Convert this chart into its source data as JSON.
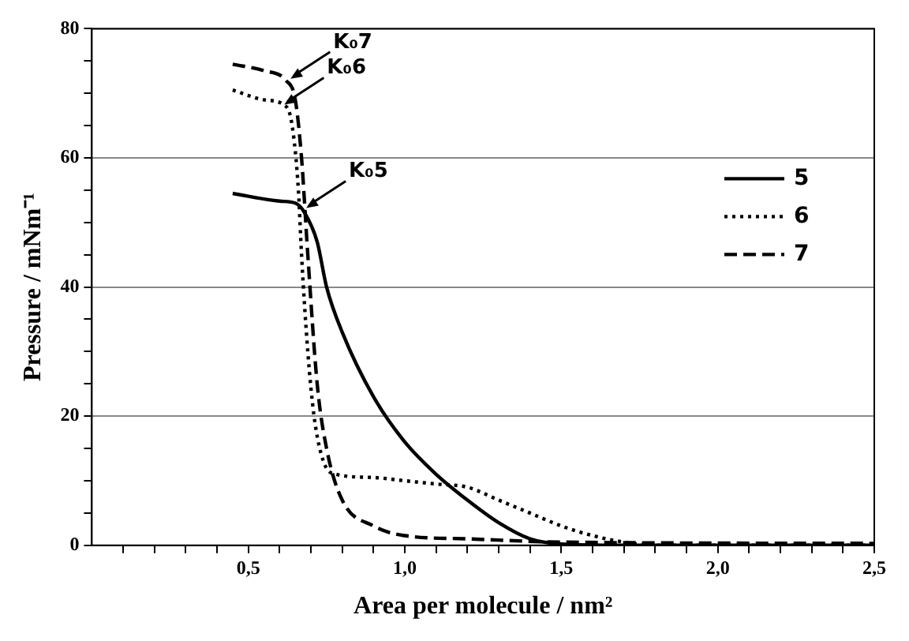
{
  "chart_data": {
    "type": "line",
    "xlabel": "Area per molecule / nm²",
    "ylabel": "Pressure / mNm⁻¹",
    "xlim": [
      0,
      2.5
    ],
    "xticks": [
      {
        "value": 0.1,
        "label": null
      },
      {
        "value": 0.2,
        "label": null
      },
      {
        "value": 0.3,
        "label": null
      },
      {
        "value": 0.4,
        "label": null
      },
      {
        "value": 0.5,
        "label": "0,5"
      },
      {
        "value": 0.6,
        "label": null
      },
      {
        "value": 0.7,
        "label": null
      },
      {
        "value": 0.8,
        "label": null
      },
      {
        "value": 0.9,
        "label": null
      },
      {
        "value": 1.0,
        "label": "1,0"
      },
      {
        "value": 1.1,
        "label": null
      },
      {
        "value": 1.2,
        "label": null
      },
      {
        "value": 1.3,
        "label": null
      },
      {
        "value": 1.4,
        "label": null
      },
      {
        "value": 1.5,
        "label": "1,5"
      },
      {
        "value": 1.6,
        "label": null
      },
      {
        "value": 1.7,
        "label": null
      },
      {
        "value": 1.8,
        "label": null
      },
      {
        "value": 1.9,
        "label": null
      },
      {
        "value": 2.0,
        "label": "2,0"
      },
      {
        "value": 2.1,
        "label": null
      },
      {
        "value": 2.2,
        "label": null
      },
      {
        "value": 2.3,
        "label": null
      },
      {
        "value": 2.4,
        "label": null
      },
      {
        "value": 2.5,
        "label": "2,5"
      }
    ],
    "ylim": [
      0,
      80
    ],
    "yticks": [
      0,
      {
        "value": 5,
        "label": null
      },
      {
        "value": 10,
        "label": null
      },
      {
        "value": 15,
        "label": null
      },
      20,
      {
        "value": 25,
        "label": null
      },
      {
        "value": 30,
        "label": null
      },
      {
        "value": 35,
        "label": null
      },
      40,
      {
        "value": 45,
        "label": null
      },
      {
        "value": 50,
        "label": null
      },
      {
        "value": 55,
        "label": null
      },
      60,
      {
        "value": 65,
        "label": null
      },
      {
        "value": 70,
        "label": null
      },
      {
        "value": 75,
        "label": null
      },
      80
    ],
    "grid": "y",
    "legend": "top right",
    "marker": "none",
    "series": [
      {
        "name": "5",
        "color": "#000000",
        "line_style": "solid",
        "x": [
          0.45,
          0.6,
          0.65,
          0.68,
          0.72,
          0.75,
          0.8,
          0.9,
          1.0,
          1.1,
          1.2,
          1.3,
          1.4,
          1.5,
          1.7,
          2.5
        ],
        "values": [
          54.5,
          53.3,
          53,
          51.5,
          47,
          40,
          33,
          23,
          16,
          11,
          7,
          3.5,
          1,
          0.2,
          0,
          0
        ]
      },
      {
        "name": "6",
        "color": "#000000",
        "line_style": "dotted",
        "x": [
          0.45,
          0.55,
          0.62,
          0.64,
          0.66,
          0.67,
          0.69,
          0.71,
          0.74,
          0.78,
          0.9,
          1.0,
          1.1,
          1.2,
          1.3,
          1.4,
          1.5,
          1.6,
          1.7,
          1.8,
          2.5
        ],
        "values": [
          70.5,
          69,
          68,
          65,
          55,
          45,
          30,
          20,
          13,
          11,
          10.5,
          10,
          9.5,
          9,
          7,
          5,
          3,
          1.5,
          0.5,
          0,
          0
        ]
      },
      {
        "name": "7",
        "color": "#000000",
        "line_style": "dashed",
        "x": [
          0.45,
          0.55,
          0.62,
          0.65,
          0.67,
          0.69,
          0.72,
          0.75,
          0.8,
          0.9,
          1.0,
          1.2,
          1.5,
          2.5
        ],
        "values": [
          74.5,
          73.5,
          72,
          69,
          60,
          45,
          25,
          15,
          7,
          3,
          1.5,
          1,
          0.5,
          0.3
        ]
      }
    ],
    "annotations": [
      {
        "text": "K₀7",
        "x": 0.63,
        "y": 72
      },
      {
        "text": "K₀6",
        "x": 0.61,
        "y": 68
      },
      {
        "text": "K₀5",
        "x": 0.68,
        "y": 52
      }
    ]
  }
}
